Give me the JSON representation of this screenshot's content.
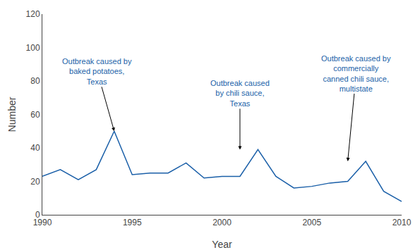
{
  "chart_data": {
    "type": "line",
    "x": [
      1990,
      1991,
      1992,
      1993,
      1994,
      1995,
      1996,
      1997,
      1998,
      1999,
      2000,
      2001,
      2002,
      2003,
      2004,
      2005,
      2006,
      2007,
      2008,
      2009,
      2010
    ],
    "values": [
      23,
      27,
      21,
      27,
      50,
      24,
      25,
      25,
      31,
      22,
      23,
      23,
      39,
      23,
      16,
      17,
      19,
      20,
      32,
      14,
      8
    ],
    "color": "#1a5fa8",
    "xlabel": "Year",
    "ylabel": "Number",
    "xlim": [
      1990,
      2010
    ],
    "xticks": [
      1990,
      1995,
      2000,
      2005,
      2010
    ],
    "ylim": [
      0,
      120
    ],
    "yticks": [
      0,
      20,
      40,
      60,
      80,
      100,
      120
    ],
    "grid": false,
    "annotations": [
      {
        "text": "Outbreak caused by\nbaked potatoes,\nTexas",
        "x": 1994,
        "y": 50,
        "color": "#1a5fa8"
      },
      {
        "text": "Outbreak caused\nby chili sauce,\nTexas",
        "x": 2001,
        "y": 39,
        "color": "#1a5fa8"
      },
      {
        "text": "Outbreak caused by\ncommercially\ncanned chili sauce,\nmultistate",
        "x": 2007,
        "y": 32,
        "color": "#1a5fa8"
      }
    ]
  }
}
